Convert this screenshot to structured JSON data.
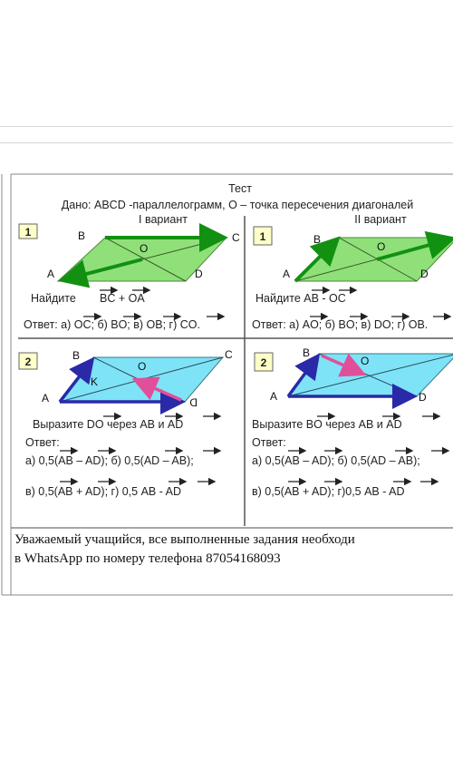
{
  "header": {
    "title": "Тест",
    "given": "Дано: ABCD -параллелограмм, О – точка пересечения диагоналей",
    "variant1": "I вариант",
    "variant2": "II вариант"
  },
  "task_numbers": [
    "1",
    "1",
    "2",
    "2"
  ],
  "points": {
    "A": "A",
    "B": "B",
    "C": "C",
    "D": "D",
    "O": "O",
    "K": "K",
    "D_mirror": "D"
  },
  "task1_v1": {
    "find": "Найдите",
    "expr": "BC + OA",
    "answer": "Ответ: а) OC; б) BO; в) OB; г) CO."
  },
  "task1_v2": {
    "find": "Найдите AB - OC",
    "answer": "Ответ: а) AO; б) BO; в) DO; г) OB."
  },
  "task2_v1": {
    "express": "Выразите  DO через  AB и  AD",
    "answer_label": "Ответ:",
    "line1": "а) 0,5(AB – AD);  б) 0,5(AD – AB);",
    "line2": "в) 0,5(AB + AD);   г) 0,5 AB - AD"
  },
  "task2_v2": {
    "express": "Выразите  BO через  AB и  AD",
    "answer_label": "Ответ:",
    "line1": "а) 0,5(AB – AD);   б) 0,5(AD – AB);",
    "line2": "в) 0,5(AB + AD);    г)0,5 AB - AD"
  },
  "note": {
    "line1": "Уважаемый учащийся, все выполненные задания необходи",
    "line2": "в WhatsApp по номеру телефона 87054168093"
  },
  "colors": {
    "green_fill": "#90e07a",
    "cyan_fill": "#7fe3f7",
    "green_vector": "#129012",
    "navy_vector": "#2a2aa8",
    "pink_vector": "#e0509a"
  }
}
